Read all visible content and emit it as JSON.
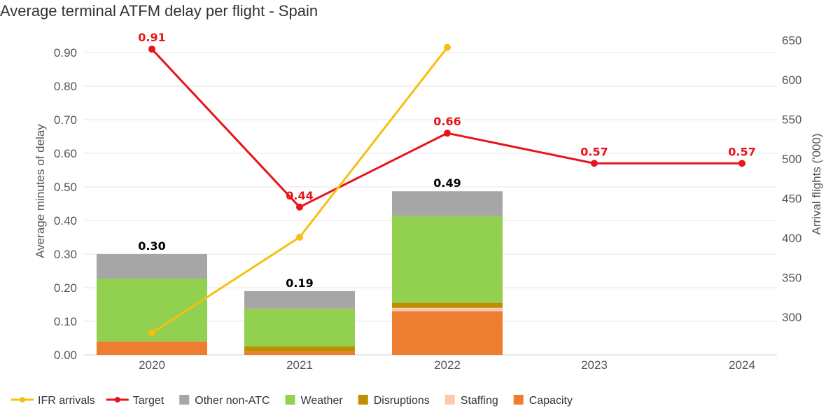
{
  "chart_data": {
    "type": "bar",
    "title": "Average terminal ATFM delay per flight - Spain",
    "ylabel": "Average minutes of delay",
    "y2label": "Arrival flights ('000)",
    "categories": [
      "2020",
      "2021",
      "2022",
      "2023",
      "2024"
    ],
    "ylim": [
      0,
      0.95
    ],
    "y2lim": [
      250,
      660
    ],
    "yticks": [
      "0.00",
      "0.10",
      "0.20",
      "0.30",
      "0.40",
      "0.50",
      "0.60",
      "0.70",
      "0.80",
      "0.90"
    ],
    "y2ticks": [
      "300",
      "350",
      "400",
      "450",
      "500",
      "550",
      "600",
      "650"
    ],
    "grid": true,
    "legend_position": "bottom-left",
    "stacked_series": [
      {
        "name": "Capacity",
        "color": "#ed7d31",
        "values": [
          0.04,
          0.01,
          0.13,
          null,
          null
        ]
      },
      {
        "name": "Staffing",
        "color": "#f8cbad",
        "values": [
          0.0,
          0.0,
          0.01,
          null,
          null
        ]
      },
      {
        "name": "Disruptions",
        "color": "#bf8f00",
        "values": [
          0.0,
          0.015,
          0.015,
          null,
          null
        ]
      },
      {
        "name": "Weather",
        "color": "#92d050",
        "values": [
          0.187,
          0.112,
          0.258,
          null,
          null
        ]
      },
      {
        "name": "Other non-ATC",
        "color": "#a6a6a6",
        "values": [
          0.073,
          0.053,
          0.074,
          null,
          null
        ]
      }
    ],
    "totals": [
      "0.30",
      "0.19",
      "0.49",
      null,
      null
    ],
    "line_series": [
      {
        "name": "Target",
        "axis": "left",
        "color": "#e8141b",
        "values": [
          0.91,
          0.44,
          0.66,
          0.57,
          0.57
        ],
        "labels": [
          "0.91",
          "0.44",
          "0.66",
          "0.57",
          "0.57"
        ]
      },
      {
        "name": "IFR arrivals",
        "axis": "right",
        "color": "#f5c010",
        "values": [
          280,
          401,
          641,
          null,
          null
        ]
      }
    ],
    "legend": [
      {
        "name": "IFR arrivals",
        "kind": "line",
        "color": "#f5c010"
      },
      {
        "name": "Target",
        "kind": "line",
        "color": "#e8141b"
      },
      {
        "name": "Other non-ATC",
        "kind": "square",
        "color": "#a6a6a6"
      },
      {
        "name": "Weather",
        "kind": "square",
        "color": "#92d050"
      },
      {
        "name": "Disruptions",
        "kind": "square",
        "color": "#bf8f00"
      },
      {
        "name": "Staffing",
        "kind": "square",
        "color": "#f8cbad"
      },
      {
        "name": "Capacity",
        "kind": "square",
        "color": "#ed7d31"
      }
    ]
  }
}
